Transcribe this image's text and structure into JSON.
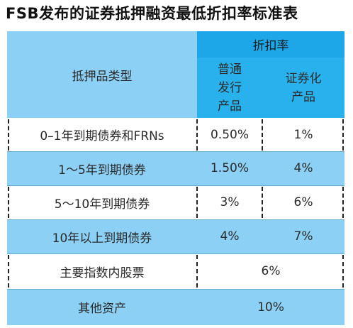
{
  "title": "FSB发布的证券抵押融资最低折扣率标准表",
  "header": {
    "col1": "抵押品类型",
    "group": "折扣率",
    "sub1_lines": [
      "普通",
      "发行",
      "产品"
    ],
    "sub2_lines": [
      "证券化",
      "产品"
    ]
  },
  "rows": [
    {
      "type": "0–1年到期债券和FRNs",
      "ordinary": "0.50%",
      "securitized": "1%"
    },
    {
      "type": "1～5年到期债券",
      "ordinary": "1.50%",
      "securitized": "4%"
    },
    {
      "type": "5～10年到期债券",
      "ordinary": "3%",
      "securitized": "6%"
    },
    {
      "type": "10年以上到期债券",
      "ordinary": "4%",
      "securitized": "7%"
    },
    {
      "type": "主要指数内股票",
      "rate": "6%"
    },
    {
      "type": "其他资产",
      "rate": "10%"
    }
  ],
  "colors": {
    "light_blue": "#8dd0f5",
    "header_blue": "#1ea7e8",
    "white": "#ffffff"
  }
}
